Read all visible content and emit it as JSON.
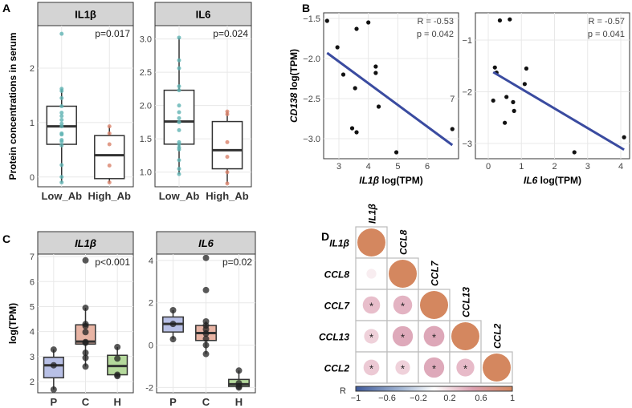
{
  "panel_labels": [
    "A",
    "B",
    "C",
    "D"
  ],
  "chart_data": [
    {
      "id": "A1",
      "type": "box",
      "panel": "A",
      "title": "IL1β",
      "ylabel": "Protein concentrations in serum",
      "categories": [
        "Low_Ab",
        "High_Ab"
      ],
      "yticks": [
        "0",
        "1",
        "2"
      ],
      "ylim": [
        -0.18,
        2.78
      ],
      "annotation": "p=0.017",
      "boxes": [
        {
          "q1": 0.6,
          "median": 0.93,
          "q3": 1.3,
          "lo": -0.1,
          "hi": 1.62,
          "color": "#5fb3b3",
          "points": [
            2.63,
            1.62,
            1.58,
            1.45,
            1.3,
            1.18,
            1.12,
            1.05,
            0.98,
            0.93,
            0.8,
            0.78,
            0.68,
            0.65,
            0.58,
            0.22,
            0.0,
            -0.1
          ]
        },
        {
          "q1": -0.03,
          "median": 0.4,
          "q3": 0.76,
          "lo": -0.1,
          "hi": 0.93,
          "color": "#d9826a",
          "points": [
            0.93,
            0.8,
            0.6,
            0.21,
            -0.1
          ]
        }
      ]
    },
    {
      "id": "A2",
      "type": "box",
      "panel": "A",
      "title": "IL6",
      "categories": [
        "Low_Ab",
        "High_Ab"
      ],
      "yticks": [
        "1.0",
        "1.5",
        "2.0",
        "2.5",
        "3.0"
      ],
      "ylim": [
        0.78,
        3.2
      ],
      "annotation": "p=0.024",
      "boxes": [
        {
          "q1": 1.42,
          "median": 1.76,
          "q3": 2.23,
          "lo": 0.97,
          "hi": 3.02,
          "color": "#5fb3b3",
          "points": [
            3.02,
            2.68,
            2.56,
            2.29,
            2.23,
            2.0,
            1.9,
            1.81,
            1.75,
            1.63,
            1.45,
            1.42,
            1.37,
            1.34,
            1.18,
            1.05,
            0.97
          ]
        },
        {
          "q1": 1.05,
          "median": 1.33,
          "q3": 1.76,
          "lo": 0.83,
          "hi": 1.91,
          "color": "#d9826a",
          "points": [
            1.91,
            1.87,
            1.45,
            1.23,
            1.0,
            0.83
          ]
        }
      ]
    },
    {
      "id": "B1",
      "type": "scatter",
      "panel": "B",
      "xlabel_gene": "IL1β",
      "xlabel": "log(TPM)",
      "ylabel_gene": "CD138",
      "ylabel": "log(TPM)",
      "xticks": [
        3,
        4,
        5,
        6
      ],
      "yticks": [
        -1.5,
        -2.0,
        -2.5,
        -3.0
      ],
      "ytick_labels": [
        "−1.5",
        "−2.0",
        "−2.5",
        "−3.0"
      ],
      "r_label": "R = -0.53",
      "p_label": "p = 0.042",
      "extra_label": "7",
      "extra_at": [
        6.85,
        -2.5
      ],
      "x": [
        2.6,
        2.95,
        3.15,
        3.6,
        4.0,
        3.55,
        3.45,
        3.6,
        4.25,
        4.25,
        4.35,
        4.95,
        6.85
      ],
      "y": [
        -1.53,
        -1.86,
        -2.2,
        -1.63,
        -1.55,
        -2.37,
        -2.87,
        -2.92,
        -2.1,
        -2.18,
        -2.6,
        -3.17,
        -2.88
      ],
      "fit": [
        [
          2.6,
          -1.93
        ],
        [
          6.85,
          -3.08
        ]
      ],
      "fit_color": "#3a4ba0"
    },
    {
      "id": "B2",
      "type": "scatter",
      "panel": "B",
      "xlabel_gene": "IL6",
      "xlabel": "log(TPM)",
      "xticks": [
        0,
        1,
        2,
        3,
        4
      ],
      "yticks": [
        -1,
        -2,
        -3
      ],
      "ytick_labels": [
        "−1",
        "−2",
        "−3"
      ],
      "r_label": "R = -0.57",
      "p_label": "p = 0.041",
      "x": [
        0.35,
        0.65,
        0.2,
        0.25,
        0.15,
        0.55,
        0.75,
        0.78,
        0.5,
        1.1,
        1.15,
        2.6,
        4.1
      ],
      "y": [
        -0.62,
        -0.6,
        -1.53,
        -1.63,
        -2.17,
        -2.1,
        -2.2,
        -2.37,
        -2.6,
        -1.85,
        -1.55,
        -3.17,
        -2.88
      ],
      "fit": [
        [
          0.15,
          -1.62
        ],
        [
          4.1,
          -3.12
        ]
      ],
      "fit_color": "#3a4ba0"
    },
    {
      "id": "C1",
      "type": "box",
      "panel": "C",
      "title": "IL1β",
      "ylabel": "log(TPM)",
      "categories": [
        "P",
        "C",
        "H"
      ],
      "yticks": [
        "2",
        "3",
        "4",
        "5",
        "6",
        "7"
      ],
      "ylim": [
        1.55,
        7.1
      ],
      "annotation": "p<0.001",
      "boxes": [
        {
          "q1": 2.15,
          "median": 2.65,
          "q3": 2.97,
          "lo": 1.68,
          "hi": 3.28,
          "color": "#b8c0e6",
          "points": [
            3.28,
            2.65,
            1.68
          ]
        },
        {
          "q1": 3.5,
          "median": 3.6,
          "q3": 4.27,
          "lo": 2.6,
          "hi": 4.95,
          "color": "#e8b4a4",
          "points": [
            6.85,
            4.95,
            4.3,
            4.22,
            3.98,
            3.58,
            3.55,
            3.15,
            2.95,
            2.6
          ]
        },
        {
          "q1": 2.27,
          "median": 2.62,
          "q3": 3.05,
          "lo": 2.22,
          "hi": 3.38,
          "color": "#b5d99c",
          "points": [
            3.38,
            2.92,
            2.27,
            2.22
          ]
        }
      ]
    },
    {
      "id": "C2",
      "type": "box",
      "panel": "C",
      "title": "IL6",
      "categories": [
        "P",
        "C",
        "H"
      ],
      "yticks": [
        "-2",
        "0",
        "2",
        "4"
      ],
      "ylim": [
        -2.25,
        4.3
      ],
      "annotation": "p=0.02",
      "boxes": [
        {
          "q1": 0.62,
          "median": 1.0,
          "q3": 1.33,
          "lo": 0.28,
          "hi": 1.65,
          "color": "#b8c0e6",
          "points": [
            1.65,
            1.0,
            0.28
          ]
        },
        {
          "q1": 0.22,
          "median": 0.57,
          "q3": 0.93,
          "lo": -0.42,
          "hi": 1.12,
          "color": "#e8b4a4",
          "points": [
            4.12,
            2.6,
            1.12,
            0.93,
            0.75,
            0.55,
            0.3,
            0.0,
            -0.42
          ]
        },
        {
          "q1": -1.95,
          "median": -1.85,
          "q3": -1.62,
          "lo": -2.0,
          "hi": -1.2,
          "color": "#b5d99c",
          "points": [
            -1.2,
            -1.8,
            -1.95,
            -2.0
          ]
        }
      ]
    },
    {
      "id": "D",
      "type": "heatmap",
      "panel": "D",
      "variables": [
        "IL1β",
        "CCL8",
        "CCL7",
        "CCL13",
        "CCL2"
      ],
      "matrix": [
        [
          1
        ],
        [
          0.12,
          1
        ],
        [
          0.42,
          0.5,
          1
        ],
        [
          0.3,
          0.58,
          0.6,
          1
        ],
        [
          0.35,
          0.3,
          0.58,
          0.45,
          1
        ]
      ],
      "significant": [
        [
          false
        ],
        [
          false,
          false
        ],
        [
          true,
          true,
          false
        ],
        [
          true,
          true,
          true,
          false
        ],
        [
          true,
          true,
          true,
          true,
          false
        ]
      ],
      "significance_mark": "*",
      "colorbar_label": "R",
      "colorbar_ticks": [
        "−1",
        "−0.6",
        "−0.2",
        "0.2",
        "0.6",
        "1"
      ]
    }
  ]
}
